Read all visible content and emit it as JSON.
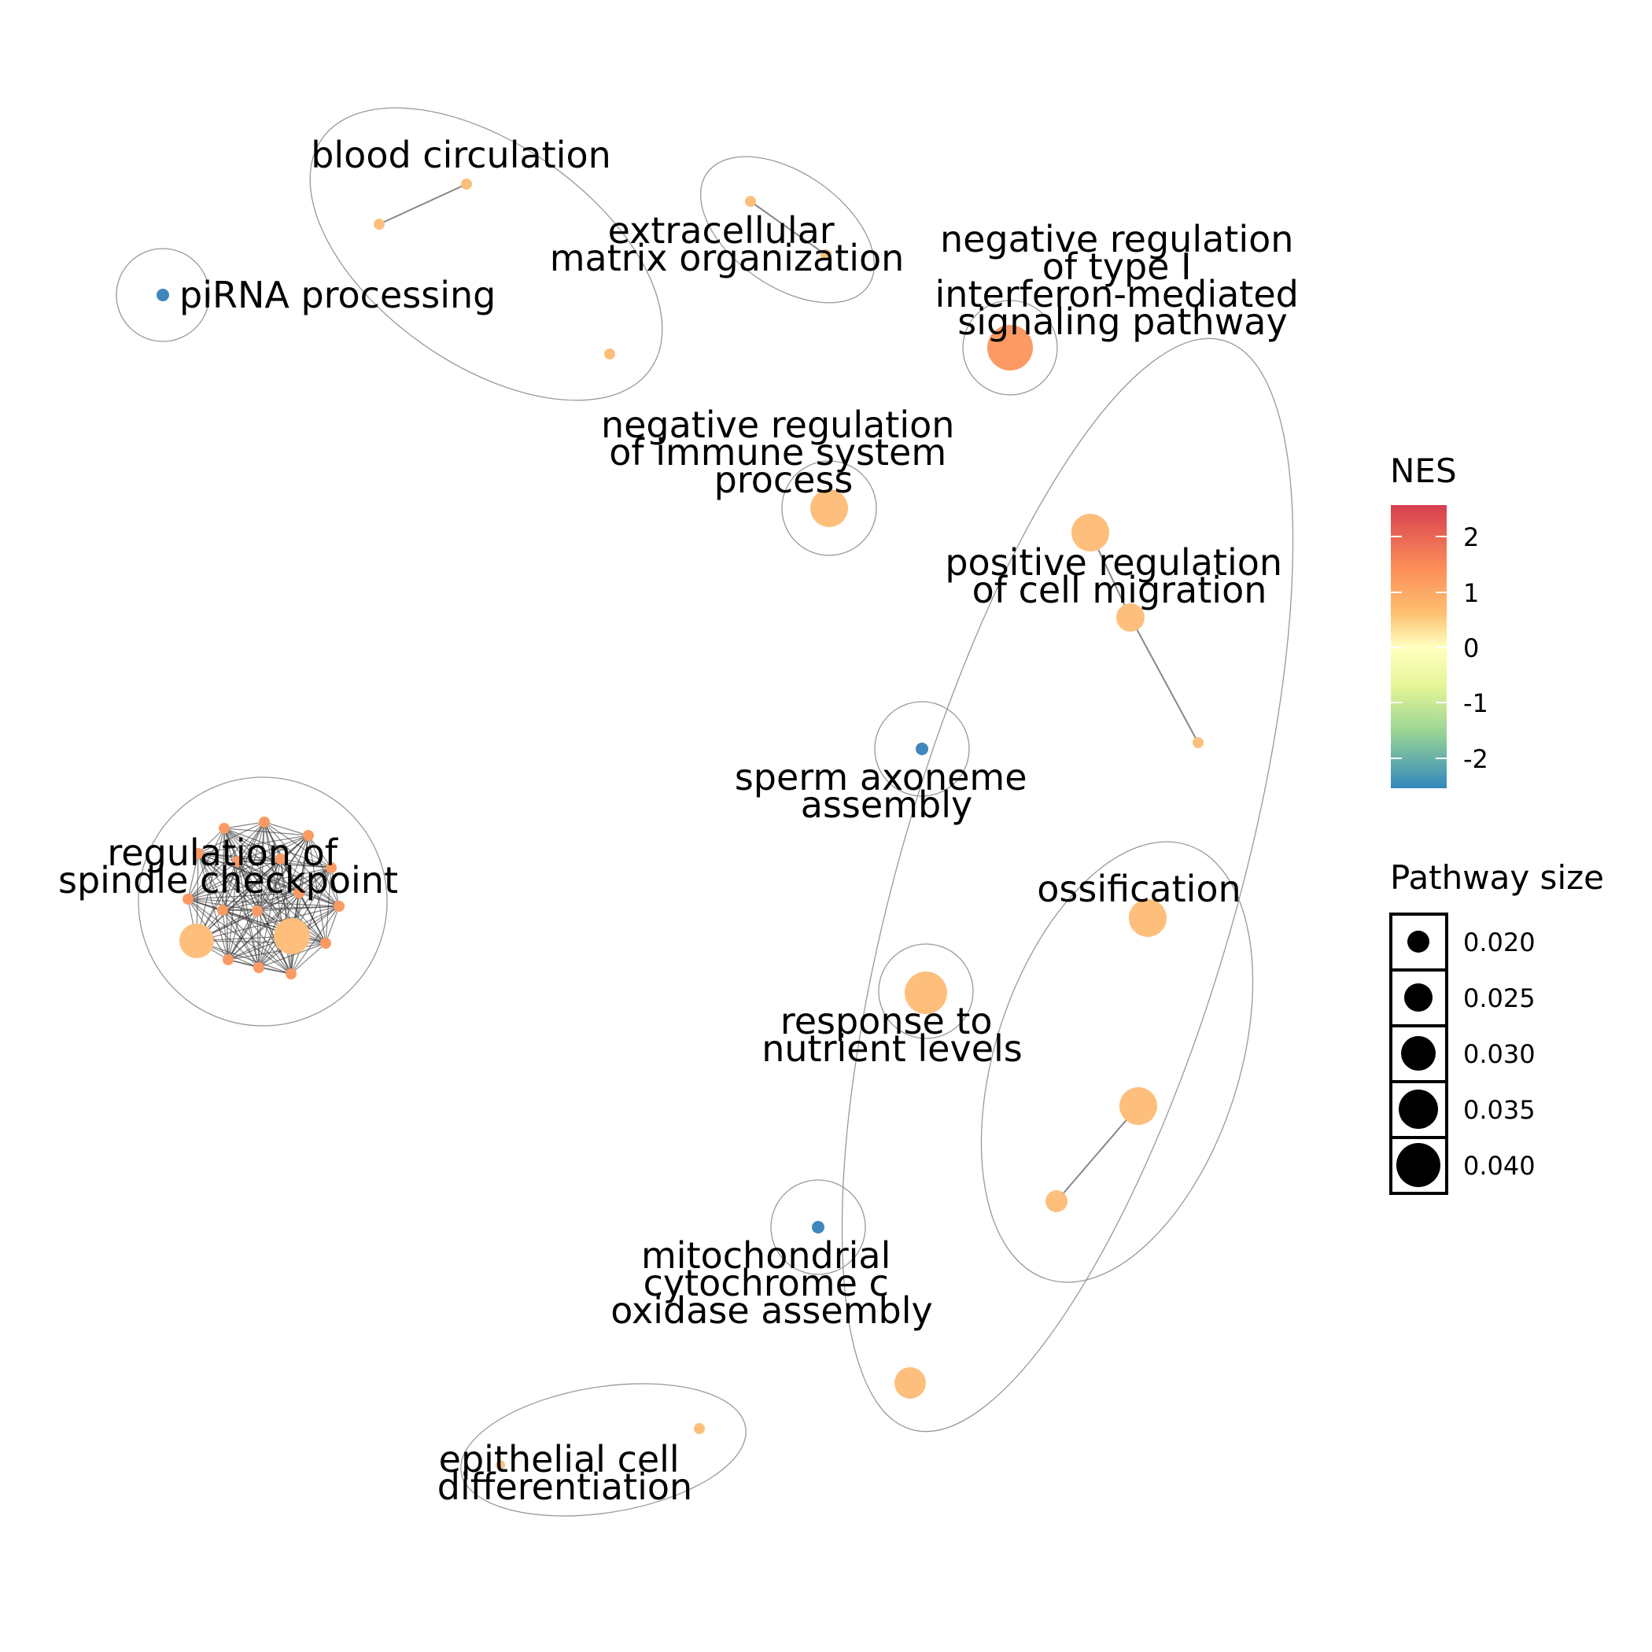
{
  "clusters": [
    {
      "id": "blood",
      "label_lines": [
        "blood circulation"
      ]
    },
    {
      "id": "ecm",
      "label_lines": [
        "extracellular",
        "matrix organization"
      ]
    },
    {
      "id": "pirna",
      "label_lines": [
        "piRNA processing"
      ]
    },
    {
      "id": "ifn",
      "label_lines": [
        "negative regulation",
        "of type I",
        "interferon-mediated",
        "signaling pathway"
      ]
    },
    {
      "id": "immune",
      "label_lines": [
        "negative regulation",
        "of immune system",
        "process"
      ]
    },
    {
      "id": "migration",
      "label_lines": [
        "positive regulation",
        "of cell migration"
      ]
    },
    {
      "id": "sperm",
      "label_lines": [
        "sperm axoneme",
        "assembly"
      ]
    },
    {
      "id": "spindle",
      "label_lines": [
        "regulation of",
        "spindle checkpoint"
      ]
    },
    {
      "id": "ossification",
      "label_lines": [
        "ossification"
      ]
    },
    {
      "id": "nutrient",
      "label_lines": [
        "response to",
        "nutrient levels"
      ]
    },
    {
      "id": "mito",
      "label_lines": [
        "mitochondrial",
        "cytochrome c",
        "oxidase assembly"
      ]
    },
    {
      "id": "epithelial",
      "label_lines": [
        "epithelial cell",
        "differentiation"
      ]
    }
  ],
  "legend": {
    "nes": {
      "title": "NES",
      "ticks": [
        "2",
        "1",
        "0",
        "-1",
        "-2"
      ],
      "colors": [
        "#d53e4f",
        "#fc8d59",
        "#fee08b",
        "#ffffbf",
        "#e6f598",
        "#99d594",
        "#3288bd"
      ]
    },
    "size": {
      "title": "Pathway size",
      "ticks": [
        "0.020",
        "0.025",
        "0.030",
        "0.035",
        "0.040"
      ]
    }
  },
  "colors": {
    "nes_high": "#fb9a63",
    "nes_pos": "#fdbf7b",
    "nes_neg": "#3f86bc",
    "edge": "#444444",
    "hull": "#999999"
  }
}
